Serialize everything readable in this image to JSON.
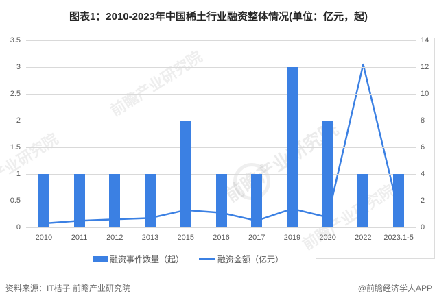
{
  "title": "图表1：2010-2023年中国稀土行业融资整体情况(单位：亿元，起)",
  "chart_data": {
    "type": "bar+line",
    "categories": [
      "2010",
      "2011",
      "2012",
      "2013",
      "2015",
      "2016",
      "2017",
      "2019",
      "2020",
      "2022",
      "2023.1-5"
    ],
    "series": [
      {
        "name": "融资事件数量（起）",
        "type": "bar",
        "axis": "left",
        "values": [
          1,
          1,
          1,
          1,
          2,
          1,
          1,
          3,
          2,
          1,
          1
        ]
      },
      {
        "name": "融资金额（亿元）",
        "type": "line",
        "axis": "right",
        "values": [
          0.3,
          0.5,
          0.6,
          0.7,
          1.3,
          1.1,
          0.5,
          1.4,
          0.75,
          12.2,
          1.2
        ]
      }
    ],
    "left_axis": {
      "range": [
        0,
        3.5
      ],
      "tick_labels_top_to_bottom": [
        "3.5",
        "3",
        "2.5",
        "2",
        "1.5",
        "1",
        "0.5",
        "0"
      ]
    },
    "right_axis": {
      "range": [
        0,
        14
      ],
      "tick_labels_top_to_bottom": [
        "14",
        "12",
        "10",
        "8",
        "6",
        "4",
        "2",
        "0"
      ]
    },
    "grid": true,
    "legend_position": "bottom"
  },
  "colors": {
    "bar": "#3b80e3",
    "line": "#3b80e3",
    "grid": "#d9d9d9",
    "axis_text": "#595959",
    "title_text": "#262626",
    "footer_text": "#6e6e6e"
  },
  "legend": {
    "items": [
      {
        "label": "融资事件数量（起）",
        "swatch": "bar"
      },
      {
        "label": "融资金额（亿元）",
        "swatch": "line"
      }
    ]
  },
  "footer": {
    "source": "资料来源：IT桔子 前瞻产业研究院",
    "brand": "@前瞻经济学人APP"
  },
  "watermark": {
    "text": "前瞻产业研究院"
  }
}
